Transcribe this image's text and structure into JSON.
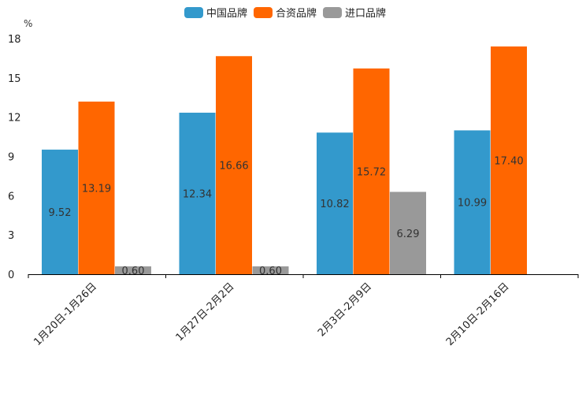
{
  "chart_data": {
    "type": "bar",
    "title": "",
    "xlabel": "",
    "ylabel": "%",
    "ylim": [
      0,
      18
    ],
    "yticks": [
      0,
      3,
      6,
      9,
      12,
      15,
      18
    ],
    "grid": false,
    "legend_position": "top-center",
    "categories": [
      "1月20日-1月26日",
      "1月27日-2月2日",
      "2月3日-2月9日",
      "2月10日-2月16日"
    ],
    "series": [
      {
        "name": "中国品牌",
        "color": "#3399cc",
        "values": [
          9.52,
          12.34,
          10.82,
          10.99
        ]
      },
      {
        "name": "合资品牌",
        "color": "#ff6600",
        "values": [
          13.19,
          16.66,
          15.72,
          17.4
        ]
      },
      {
        "name": "进口品牌",
        "color": "#999999",
        "values": [
          0.6,
          0.6,
          6.29,
          null
        ]
      }
    ]
  }
}
